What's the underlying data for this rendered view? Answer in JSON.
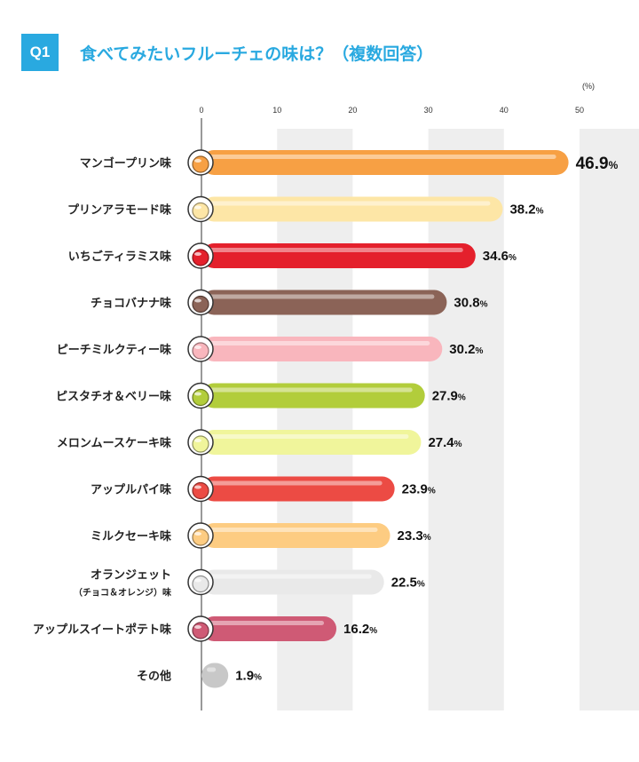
{
  "header": {
    "badge": "Q1",
    "title": "食べてみたいフルーチェの味は？（複数回答）"
  },
  "chart_data": {
    "type": "bar",
    "orientation": "horizontal",
    "unit_label": "(%)",
    "xlim": [
      0,
      50
    ],
    "xticks": [
      "0",
      "10",
      "20",
      "30",
      "40",
      "50"
    ],
    "grid": "alternating vertical bands",
    "value_suffix": "%",
    "categories": [
      "マンゴープリン味",
      "プリンアラモード味",
      "いちごティラミス味",
      "チョコバナナ味",
      "ピーチミルクティー味",
      "ピスタチオ＆ベリー味",
      "メロンムースケーキ味",
      "アップルパイ味",
      "ミルクセーキ味",
      "オランジェット",
      "アップルスイートポテト味",
      "その他"
    ],
    "subcategories": [
      "",
      "",
      "",
      "",
      "",
      "",
      "",
      "",
      "",
      "（チョコ＆オレンジ）味",
      "",
      ""
    ],
    "values": [
      46.9,
      38.2,
      34.6,
      30.8,
      30.2,
      27.9,
      27.4,
      23.9,
      23.3,
      22.5,
      16.2,
      1.9
    ],
    "value_labels": [
      "46.9",
      "38.2",
      "34.6",
      "30.8",
      "30.2",
      "27.9",
      "27.4",
      "23.9",
      "23.3",
      "22.5",
      "16.2",
      "1.9"
    ],
    "colors": [
      "#f7a044",
      "#fde6a6",
      "#e4202c",
      "#8b6357",
      "#f9b6bd",
      "#b2cd3b",
      "#f0f59b",
      "#ec4b44",
      "#fdcc82",
      "#e9e9e9",
      "#cf5a75",
      "#c8c8c8"
    ],
    "icons": [
      "mango-pudding-icon",
      "pudding-a-la-mode-icon",
      "strawberry-tiramisu-icon",
      "choco-banana-icon",
      "peach-milk-tea-icon",
      "pistachio-berry-icon",
      "melon-mousse-cake-icon",
      "apple-pie-icon",
      "milkshake-icon",
      "orangette-icon",
      "apple-sweet-potato-icon",
      ""
    ]
  }
}
